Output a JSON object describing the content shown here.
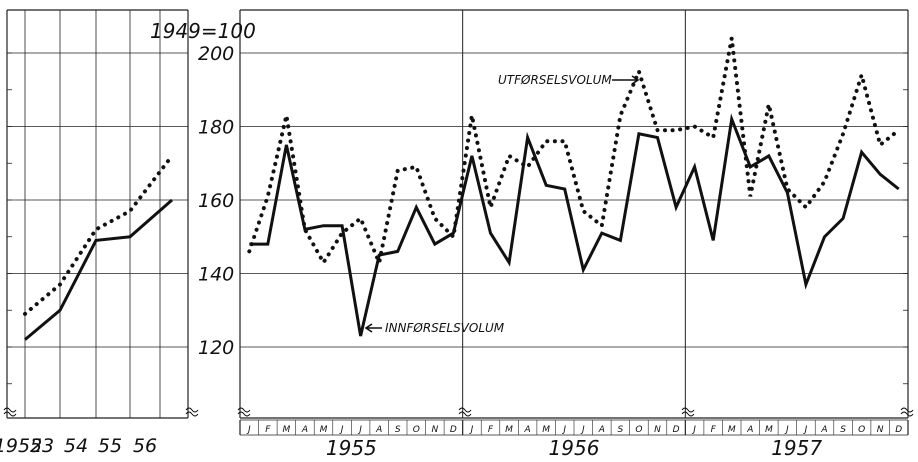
{
  "chart_data": [
    {
      "type": "line",
      "title": "",
      "xlabel": "",
      "ylabel": "",
      "categories": [
        "1952",
        "53",
        "54",
        "55",
        "56"
      ],
      "ylim": [
        100,
        205
      ],
      "series": [
        {
          "name": "INNFØRSELSVOLUM",
          "style": "solid",
          "values": [
            122,
            130,
            149,
            150,
            160
          ]
        },
        {
          "name": "UTFØRSELSVOLUM",
          "style": "dotted",
          "values": [
            129,
            137,
            152,
            157,
            172
          ]
        }
      ]
    },
    {
      "type": "line",
      "title": "",
      "index_label": "1949=100",
      "xlabel": "",
      "ylabel": "",
      "years": [
        "1955",
        "1956",
        "1957"
      ],
      "month_labels": [
        "J",
        "F",
        "M",
        "A",
        "M",
        "J",
        "J",
        "A",
        "S",
        "O",
        "N",
        "D"
      ],
      "y_ticks": [
        120,
        140,
        160,
        180,
        200
      ],
      "ylim": [
        100,
        205
      ],
      "grid": true,
      "series": [
        {
          "name": "INNFØRSELSVOLUM",
          "style": "solid",
          "values": [
            148,
            148,
            175,
            152,
            153,
            153,
            123,
            145,
            146,
            158,
            148,
            151,
            172,
            151,
            143,
            177,
            164,
            163,
            141,
            151,
            149,
            178,
            177,
            158,
            169,
            149,
            182,
            169,
            172,
            162,
            137,
            150,
            155,
            173,
            167,
            163
          ]
        },
        {
          "name": "UTFØRSELSVOLUM",
          "style": "dotted",
          "values": [
            146,
            161,
            183,
            152,
            143,
            151,
            155,
            143,
            168,
            169,
            155,
            150,
            183,
            158,
            172,
            169,
            176,
            176,
            157,
            153,
            183,
            195,
            179,
            179,
            180,
            177,
            204,
            161,
            186,
            163,
            158,
            165,
            178,
            194,
            175,
            179
          ]
        }
      ],
      "annotations": [
        {
          "text": "UTFØRSELSVOLUM",
          "series": "UTFØRSELSVOLUM"
        },
        {
          "text": "INNFØRSELSVOLUM",
          "series": "INNFØRSELSVOLUM"
        }
      ]
    }
  ],
  "colors": {
    "ink": "#111111",
    "grid": "#222222",
    "background": "#ffffff"
  }
}
